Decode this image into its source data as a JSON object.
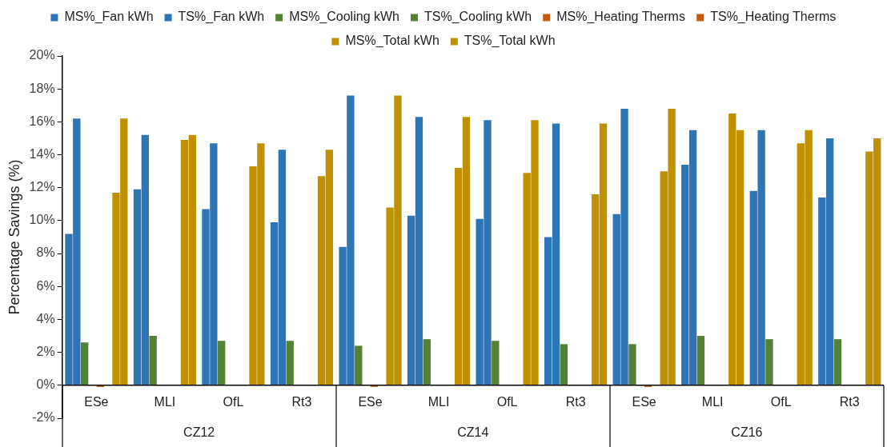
{
  "chart_data": {
    "type": "bar",
    "ylabel": "Percentage Savings (%)",
    "categories": [
      "ESe",
      "MLI",
      "OfL",
      "Rt3",
      "ESe",
      "MLI",
      "OfL",
      "Rt3",
      "ESe",
      "MLI",
      "OfL",
      "Rt3"
    ],
    "annotations": [
      "CZ12",
      "CZ14",
      "CZ16"
    ],
    "series": [
      {
        "name": "MS%_Fan kWh",
        "color": "#2e75b6",
        "values": [
          9.2,
          11.9,
          10.7,
          9.9,
          8.4,
          10.3,
          10.1,
          9.0,
          10.4,
          13.4,
          11.8,
          11.4
        ]
      },
      {
        "name": "TS%_Fan kWh",
        "color": "#2e75b6",
        "values": [
          16.2,
          15.2,
          14.7,
          14.3,
          17.6,
          16.3,
          16.1,
          15.9,
          16.8,
          15.5,
          15.5,
          15.0
        ]
      },
      {
        "name": "MS%_Cooling kWh",
        "color": "#548235",
        "values": [
          2.6,
          3.0,
          2.7,
          2.7,
          2.4,
          2.8,
          2.7,
          2.5,
          2.5,
          3.0,
          2.8,
          2.8
        ]
      },
      {
        "name": "TS%_Cooling kWh",
        "color": "#548235",
        "values": [
          0,
          0,
          0,
          0,
          0,
          0,
          0,
          0,
          0,
          0,
          0,
          0
        ]
      },
      {
        "name": "MS%_Heating Therms",
        "color": "#c55a11",
        "values": [
          -0.1,
          0,
          0,
          0,
          -0.1,
          0,
          0,
          0,
          -0.1,
          0,
          0,
          0
        ]
      },
      {
        "name": "TS%_Heating Therms",
        "color": "#c55a11",
        "values": [
          0,
          0,
          0,
          0,
          0,
          0,
          0,
          0,
          0,
          0,
          0,
          0
        ]
      },
      {
        "name": "MS%_Total kWh",
        "color": "#bf9000",
        "values": [
          11.7,
          14.9,
          13.3,
          12.7,
          10.8,
          13.2,
          12.9,
          11.6,
          13.0,
          16.5,
          14.7,
          14.2
        ]
      },
      {
        "name": "TS%_Total kWh",
        "color": "#bf9000",
        "values": [
          16.2,
          15.2,
          14.7,
          14.3,
          17.6,
          16.3,
          16.1,
          15.9,
          16.8,
          15.5,
          15.5,
          15.0
        ]
      }
    ],
    "ylim": [
      -2,
      20
    ],
    "yticks": [
      {
        "value": -2,
        "label": "-2%"
      },
      {
        "value": 0,
        "label": "0%"
      },
      {
        "value": 2,
        "label": "2%"
      },
      {
        "value": 4,
        "label": "4%"
      },
      {
        "value": 6,
        "label": "6%"
      },
      {
        "value": 8,
        "label": "8%"
      },
      {
        "value": 10,
        "label": "10%"
      },
      {
        "value": 12,
        "label": "12%"
      },
      {
        "value": 14,
        "label": "14%"
      },
      {
        "value": 16,
        "label": "16%"
      },
      {
        "value": 18,
        "label": "18%"
      },
      {
        "value": 20,
        "label": "20%"
      }
    ],
    "grid": false,
    "legend": "top"
  }
}
